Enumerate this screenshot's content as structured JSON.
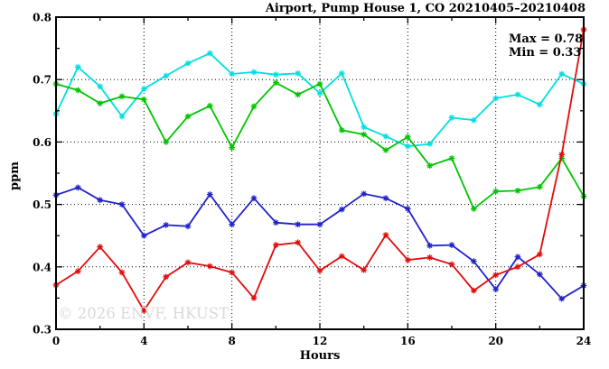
{
  "watermark": "© 2026 ENVF, HKUST",
  "chart_data": {
    "type": "line",
    "title": "Airport, Pump House 1, CO 20210405–20210408",
    "xlabel": "Hours",
    "ylabel": "ppm",
    "xlim": [
      0,
      24
    ],
    "ylim": [
      0.3,
      0.8
    ],
    "grid": "dotted-at-major-ticks",
    "legend_position": "none",
    "marker": "asterisk",
    "annotation": {
      "max": "Max = 0.78",
      "min": "Min = 0.33"
    },
    "stats": {
      "max": 0.78,
      "min": 0.33
    },
    "x_major_ticks": [
      0,
      4,
      8,
      12,
      16,
      20,
      24
    ],
    "x_minor_ticks": [
      2,
      6,
      10,
      14,
      18,
      22
    ],
    "x_tick_labels": [
      "0",
      "4",
      "8",
      "12",
      "16",
      "20",
      "24"
    ],
    "y_major_ticks": [
      0.3,
      0.4,
      0.5,
      0.6,
      0.7,
      0.8
    ],
    "y_minor_ticks": [
      0.35,
      0.45,
      0.55,
      0.65,
      0.75
    ],
    "y_tick_labels": [
      "0.3",
      "0.4",
      "0.5",
      "0.6",
      "0.7",
      "0.8"
    ],
    "x_gridlines": [
      4,
      8,
      12,
      16,
      20
    ],
    "y_gridlines": [
      0.4,
      0.5,
      0.6,
      0.7
    ],
    "x": [
      0,
      1,
      2,
      3,
      4,
      5,
      6,
      7,
      8,
      9,
      10,
      11,
      12,
      13,
      14,
      15,
      16,
      17,
      18,
      19,
      20,
      21,
      22,
      23,
      24
    ],
    "series": [
      {
        "name": "cyan",
        "color": "#00dfdf",
        "values": [
          0.645,
          0.72,
          0.689,
          0.641,
          0.685,
          0.706,
          0.726,
          0.742,
          0.709,
          0.712,
          0.708,
          0.71,
          0.678,
          0.71,
          0.624,
          0.609,
          0.593,
          0.597,
          0.639,
          0.635,
          0.67,
          0.676,
          0.66,
          0.709,
          0.693
        ]
      },
      {
        "name": "green",
        "color": "#00c400",
        "values": [
          0.693,
          0.683,
          0.662,
          0.673,
          0.668,
          0.6,
          0.641,
          0.658,
          0.591,
          0.657,
          0.695,
          0.676,
          0.693,
          0.619,
          0.612,
          0.587,
          0.608,
          0.562,
          0.574,
          0.493,
          0.521,
          0.522,
          0.528,
          0.574,
          0.513
        ]
      },
      {
        "name": "blue",
        "color": "#2121cd",
        "values": [
          0.515,
          0.527,
          0.507,
          0.5,
          0.45,
          0.467,
          0.465,
          0.516,
          0.468,
          0.51,
          0.471,
          0.468,
          0.468,
          0.492,
          0.517,
          0.51,
          0.493,
          0.434,
          0.435,
          0.409,
          0.364,
          0.416,
          0.388,
          0.349,
          0.37
        ]
      },
      {
        "name": "red",
        "color": "#e30b0b",
        "values": [
          0.371,
          0.393,
          0.432,
          0.391,
          0.33,
          0.384,
          0.407,
          0.401,
          0.391,
          0.35,
          0.435,
          0.439,
          0.394,
          0.417,
          0.395,
          0.451,
          0.411,
          0.415,
          0.404,
          0.362,
          0.387,
          0.4,
          0.42,
          0.58,
          0.78
        ]
      }
    ]
  }
}
